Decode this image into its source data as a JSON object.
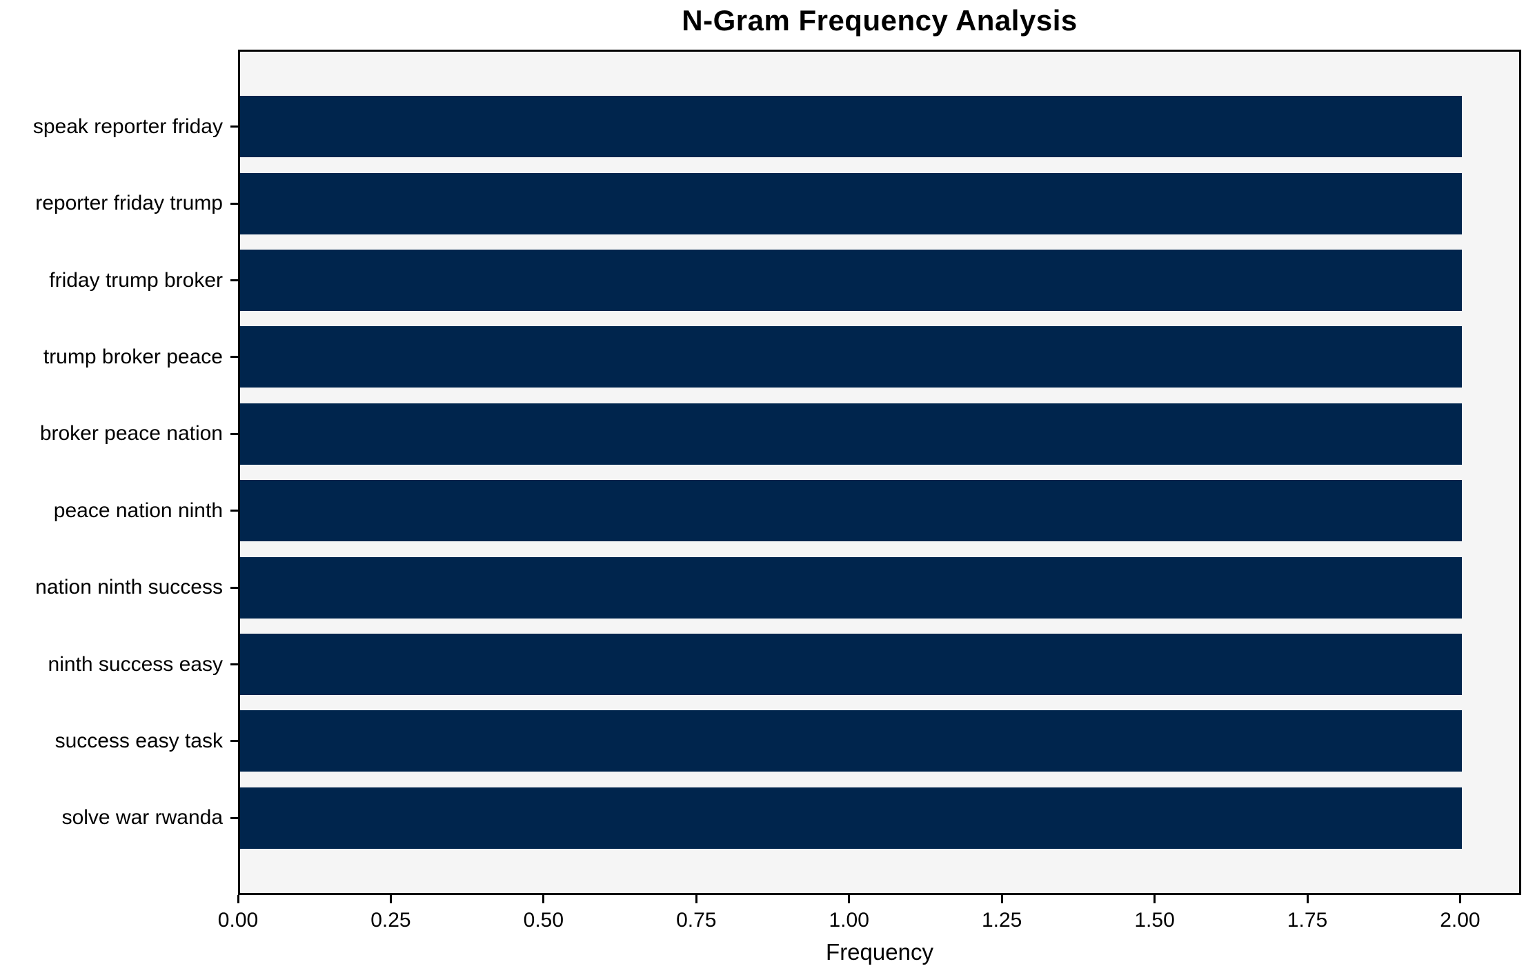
{
  "chart_data": {
    "type": "bar",
    "orientation": "horizontal",
    "title": "N-Gram Frequency Analysis",
    "xlabel": "Frequency",
    "ylabel": "",
    "categories": [
      "speak reporter friday",
      "reporter friday trump",
      "friday trump broker",
      "trump broker peace",
      "broker peace nation",
      "peace nation ninth",
      "nation ninth success",
      "ninth success easy",
      "success easy task",
      "solve war rwanda"
    ],
    "values": [
      2,
      2,
      2,
      2,
      2,
      2,
      2,
      2,
      2,
      2
    ],
    "xlim": [
      0,
      2.1
    ],
    "xticks": [
      {
        "value": 0.0,
        "label": "0.00"
      },
      {
        "value": 0.25,
        "label": "0.25"
      },
      {
        "value": 0.5,
        "label": "0.50"
      },
      {
        "value": 0.75,
        "label": "0.75"
      },
      {
        "value": 1.0,
        "label": "1.00"
      },
      {
        "value": 1.25,
        "label": "1.25"
      },
      {
        "value": 1.5,
        "label": "1.50"
      },
      {
        "value": 1.75,
        "label": "1.75"
      },
      {
        "value": 2.0,
        "label": "2.00"
      }
    ],
    "grid": false,
    "legend": null,
    "colors": {
      "bar": "#00254d",
      "plot_background": "#f5f5f5",
      "figure_background": "#ffffff",
      "axis": "#000000",
      "text": "#000000"
    }
  }
}
